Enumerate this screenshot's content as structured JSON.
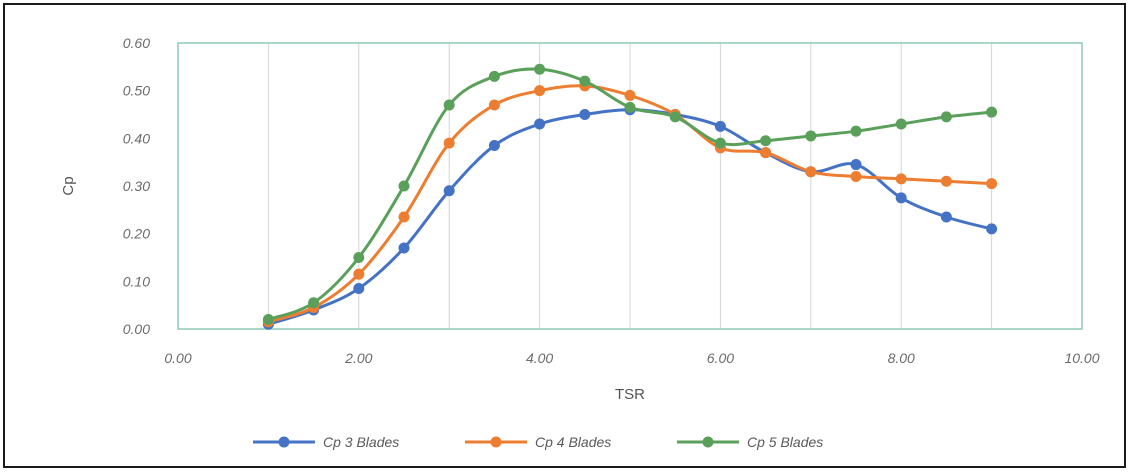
{
  "chart_data": {
    "type": "line",
    "title": "",
    "xlabel": "TSR",
    "ylabel": "Cp",
    "xlim": [
      0,
      10
    ],
    "ylim": [
      0,
      0.6
    ],
    "x_ticks": [
      "0.00",
      "2.00",
      "4.00",
      "6.00",
      "8.00",
      "10.00"
    ],
    "y_ticks": [
      "0.00",
      "0.10",
      "0.20",
      "0.30",
      "0.40",
      "0.50",
      "0.60"
    ],
    "grid": "vertical",
    "legend_position": "bottom",
    "x": [
      1,
      1.5,
      2,
      2.5,
      3,
      3.5,
      4,
      4.5,
      5,
      5.5,
      6,
      6.5,
      7,
      7.5,
      8,
      8.5,
      9
    ],
    "series": [
      {
        "name": "Cp 3 Blades",
        "color": "#4472c4",
        "values": [
          0.01,
          0.04,
          0.085,
          0.17,
          0.29,
          0.385,
          0.43,
          0.45,
          0.46,
          0.45,
          0.425,
          0.37,
          0.33,
          0.345,
          0.275,
          0.235,
          0.21
        ]
      },
      {
        "name": "Cp 4 Blades",
        "color": "#ed7d31",
        "values": [
          0.015,
          0.045,
          0.115,
          0.235,
          0.39,
          0.47,
          0.5,
          0.51,
          0.49,
          0.45,
          0.38,
          0.37,
          0.33,
          0.32,
          0.315,
          0.31,
          0.305
        ]
      },
      {
        "name": "Cp 5 Blades",
        "color": "#5aa05a",
        "values": [
          0.02,
          0.055,
          0.15,
          0.3,
          0.47,
          0.53,
          0.545,
          0.52,
          0.465,
          0.445,
          0.39,
          0.395,
          0.405,
          0.415,
          0.43,
          0.445,
          0.455
        ]
      }
    ]
  }
}
